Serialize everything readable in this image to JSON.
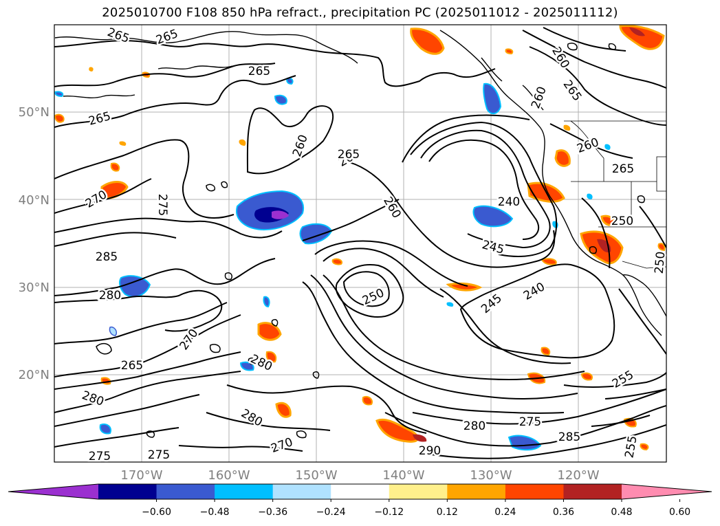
{
  "title": "2025010700 F108 850 hPa refract., precipitation PC (2025011012 - 2025011112)",
  "map": {
    "lat_labels": [
      "50°N",
      "40°N",
      "30°N",
      "20°N"
    ],
    "lon_labels": [
      "170°W",
      "160°W",
      "150°W",
      "140°W",
      "130°W",
      "120°W"
    ],
    "contour_labels": [
      "265",
      "265",
      "265",
      "265",
      "260",
      "265",
      "260",
      "260",
      "265",
      "260",
      "265",
      "270",
      "275",
      "260",
      "265",
      "240",
      "285",
      "245",
      "250",
      "280",
      "250",
      "245",
      "240",
      "250",
      "270",
      "265",
      "280",
      "280",
      "255",
      "280",
      "275",
      "280",
      "290",
      "285",
      "275",
      "275",
      "270",
      "255"
    ]
  },
  "colorbar": {
    "colors": [
      "#9b30d0",
      "#000090",
      "#3a5ad0",
      "#00bfff",
      "#b0e2ff",
      "#ffffff",
      "#fff08c",
      "#ffa500",
      "#ff4500",
      "#b22222",
      "#ff8cb0"
    ],
    "ticks": [
      "−0.60",
      "−0.48",
      "−0.36",
      "−0.24",
      "−0.12",
      "0.12",
      "0.24",
      "0.36",
      "0.48",
      "0.60"
    ]
  }
}
